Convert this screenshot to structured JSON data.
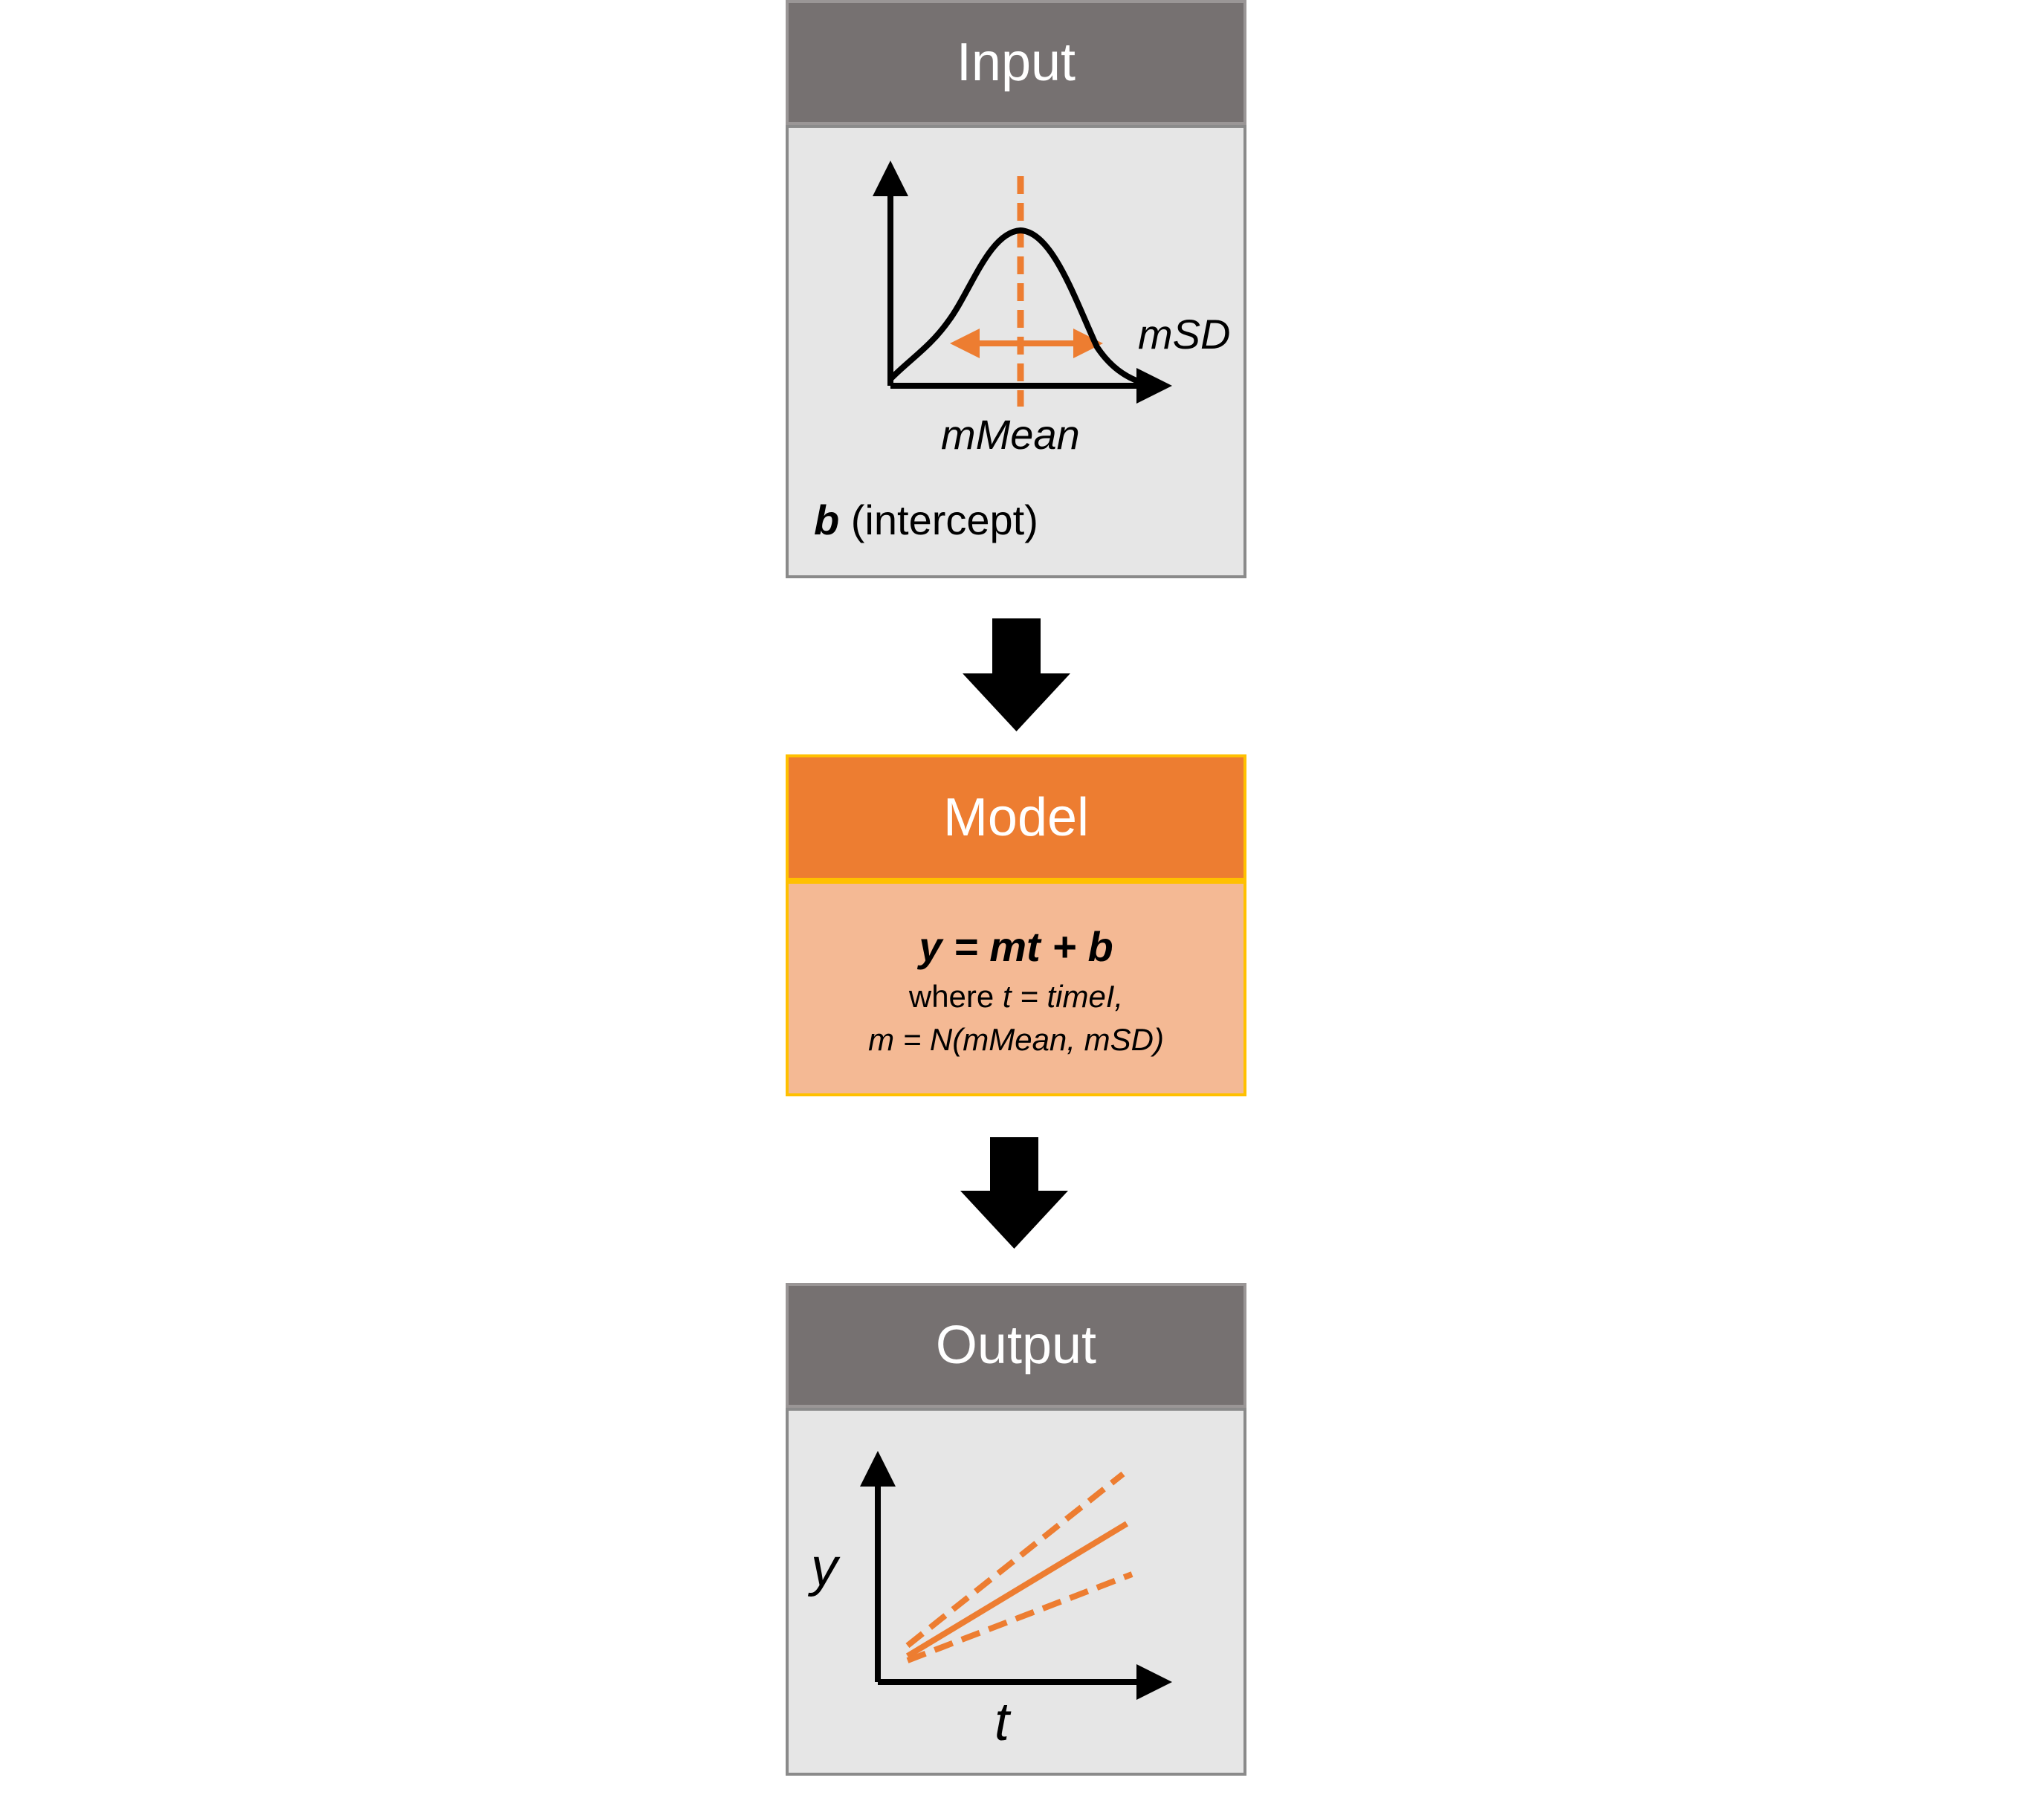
{
  "input": {
    "title": "Input",
    "chart_labels": {
      "mean": "mMean",
      "sd": "mSD"
    },
    "intercept_symbol": "b",
    "intercept_text": " (intercept)"
  },
  "model": {
    "title": "Model",
    "equation": "y = mt + b",
    "line2_prefix": "where ",
    "line2_expr": "t = timeI,",
    "line3": "m = N(mMean, mSD)"
  },
  "output": {
    "title": "Output",
    "axis_y": "y",
    "axis_x": "t"
  },
  "colors": {
    "gray_header": "#767171",
    "gray_body": "#e6e6e6",
    "orange_header": "#ed7d31",
    "orange_body": "#f4b994",
    "orange_border": "#ffc000",
    "accent": "#ed7d31",
    "arrow": "#000000"
  }
}
